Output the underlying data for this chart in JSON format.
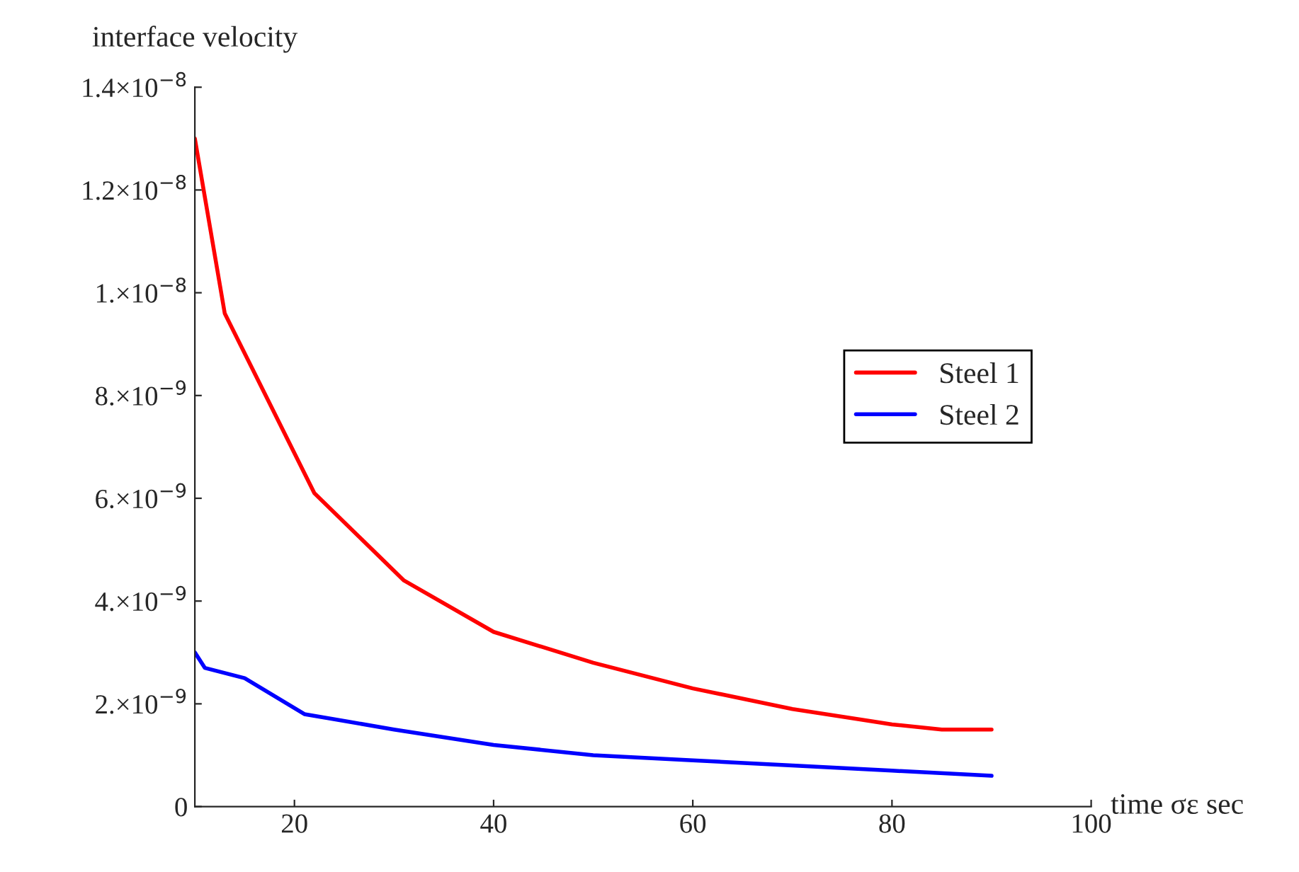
{
  "chart_data": {
    "type": "line",
    "xlabel": "time σε sec",
    "ylabel": "interface velocity",
    "xlim": [
      10,
      100
    ],
    "xticks": [
      20,
      40,
      60,
      80,
      100
    ],
    "ylim": [
      0,
      1.4e-08
    ],
    "yticks": [
      0,
      {
        "value": 2e-09,
        "label": "2.×10$^{−9}$"
      },
      {
        "value": 4e-09,
        "label": "4.×10$^{−9}$"
      },
      {
        "value": 6e-09,
        "label": "6.×10$^{−9}$"
      },
      {
        "value": 8e-09,
        "label": "8.×10$^{−9}$"
      },
      {
        "value": 1e-08,
        "label": "1.×10$^{−8}$"
      },
      {
        "value": 1.2e-08,
        "label": "1.2×10$^{−8}$"
      },
      {
        "value": 1.4e-08,
        "label": "1.4×10$^{−8}$"
      }
    ],
    "grid": false,
    "legend": "right",
    "marker": "none",
    "line_style": "solid",
    "series": [
      {
        "name": "Steel 1",
        "color": "#ff0000",
        "x": [
          10,
          13,
          22,
          31,
          40,
          50,
          60,
          70,
          80,
          85,
          90
        ],
        "values": [
          1.3e-08,
          9.6e-09,
          6.1e-09,
          4.4e-09,
          3.4e-09,
          2.8e-09,
          2.3e-09,
          1.9e-09,
          1.6e-09,
          1.5e-09,
          1.5e-09
        ]
      },
      {
        "name": "Steel 2",
        "color": "#0000ff",
        "x": [
          10,
          11,
          15,
          21,
          30,
          40,
          50,
          60,
          70,
          80,
          90
        ],
        "values": [
          3e-09,
          2.7e-09,
          2.5e-09,
          1.8e-09,
          1.5e-09,
          1.2e-09,
          1e-09,
          9e-10,
          8e-10,
          7e-10,
          6e-10
        ]
      }
    ]
  }
}
